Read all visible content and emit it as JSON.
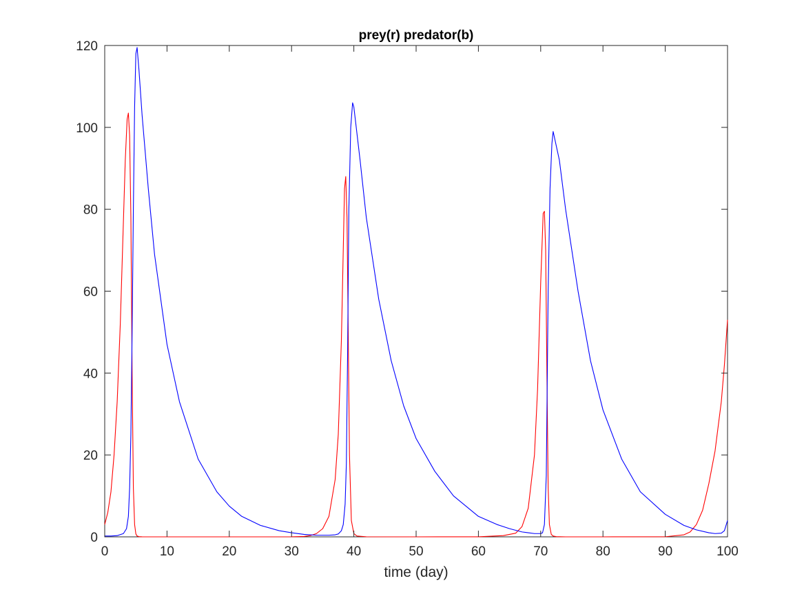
{
  "chart_data": {
    "type": "line",
    "title": "prey(r) predator(b)",
    "xlabel": "time (day)",
    "ylabel": "",
    "xlim": [
      0,
      100
    ],
    "ylim": [
      0,
      120
    ],
    "xticks": [
      0,
      10,
      20,
      30,
      40,
      50,
      60,
      70,
      80,
      90,
      100
    ],
    "yticks": [
      0,
      20,
      40,
      60,
      80,
      100,
      120
    ],
    "xtick_labels": [
      "0",
      "10",
      "20",
      "30",
      "40",
      "50",
      "60",
      "70",
      "80",
      "90",
      "100"
    ],
    "ytick_labels": [
      "0",
      "20",
      "40",
      "60",
      "80",
      "100",
      "120"
    ],
    "grid": false,
    "legend": "none",
    "colors": {
      "prey": "#ff0000",
      "predator": "#0000ff",
      "axes": "#262626",
      "background": "#ffffff"
    },
    "series": [
      {
        "color": "#ff0000",
        "x": [
          0,
          0.5,
          1,
          1.5,
          2,
          2.5,
          3,
          3.3,
          3.6,
          3.8,
          4.0,
          4.2,
          4.4,
          4.6,
          4.8,
          5.0,
          5.2,
          5.5,
          6,
          8,
          10,
          15,
          20,
          25,
          30,
          32,
          33,
          34,
          35,
          36,
          37,
          37.5,
          38,
          38.3,
          38.5,
          38.7,
          38.9,
          39.1,
          39.3,
          39.6,
          40,
          40.5,
          42,
          50,
          60,
          64,
          66,
          67,
          68,
          69,
          69.5,
          70,
          70.4,
          70.6,
          70.8,
          71.0,
          71.2,
          71.4,
          71.7,
          72,
          72.5,
          74,
          80,
          90,
          93,
          94,
          95,
          96,
          97,
          98,
          99,
          99.5,
          100
        ],
        "y": [
          3,
          6,
          11,
          20,
          33,
          52,
          77,
          92,
          102,
          103.5,
          98,
          78,
          40,
          12,
          3,
          0.7,
          0.2,
          0.05,
          0.01,
          0,
          0,
          0,
          0,
          0,
          0.02,
          0.1,
          0.3,
          0.8,
          2,
          5,
          14,
          25,
          48,
          70,
          85,
          88,
          78,
          50,
          20,
          4,
          0.8,
          0.2,
          0.02,
          0,
          0.01,
          0.3,
          0.9,
          2.5,
          7,
          20,
          36,
          62,
          79,
          79.5,
          70,
          40,
          12,
          3,
          0.6,
          0.2,
          0.05,
          0,
          0,
          0.02,
          0.5,
          1.2,
          3,
          6.5,
          13,
          21,
          33,
          42,
          53
        ]
      },
      {
        "color": "#0000ff",
        "x": [
          0,
          1,
          2,
          3,
          3.5,
          3.8,
          4.0,
          4.2,
          4.4,
          4.6,
          4.8,
          5.0,
          5.2,
          5.5,
          6,
          7,
          8,
          10,
          12,
          15,
          18,
          20,
          22,
          25,
          28,
          30,
          32,
          34,
          35,
          36,
          37,
          37.5,
          38,
          38.3,
          38.6,
          38.8,
          39,
          39.2,
          39.5,
          39.8,
          40,
          41,
          42,
          44,
          46,
          48,
          50,
          53,
          56,
          60,
          63,
          65,
          67,
          68,
          69,
          70,
          70.3,
          70.6,
          70.9,
          71.2,
          71.5,
          71.8,
          72,
          73,
          74,
          76,
          78,
          80,
          83,
          86,
          90,
          93,
          95,
          97,
          98,
          99,
          99.5,
          100
        ],
        "y": [
          0.2,
          0.2,
          0.3,
          0.8,
          2,
          5,
          12,
          25,
          50,
          80,
          105,
          118,
          119.5,
          114,
          103,
          85,
          69,
          47,
          33,
          19,
          11,
          7.5,
          5,
          2.8,
          1.5,
          1,
          0.6,
          0.4,
          0.4,
          0.4,
          0.5,
          0.7,
          1.5,
          3,
          8,
          18,
          45,
          80,
          100,
          106,
          105,
          92,
          78,
          58,
          43,
          32,
          24,
          16,
          10,
          5,
          3,
          2,
          1.2,
          1,
          0.8,
          0.8,
          1,
          3,
          15,
          60,
          85,
          96,
          99,
          92,
          80,
          60,
          43,
          31,
          19,
          11,
          5.5,
          2.8,
          1.7,
          1,
          0.8,
          0.9,
          1.5,
          4
        ]
      }
    ]
  }
}
